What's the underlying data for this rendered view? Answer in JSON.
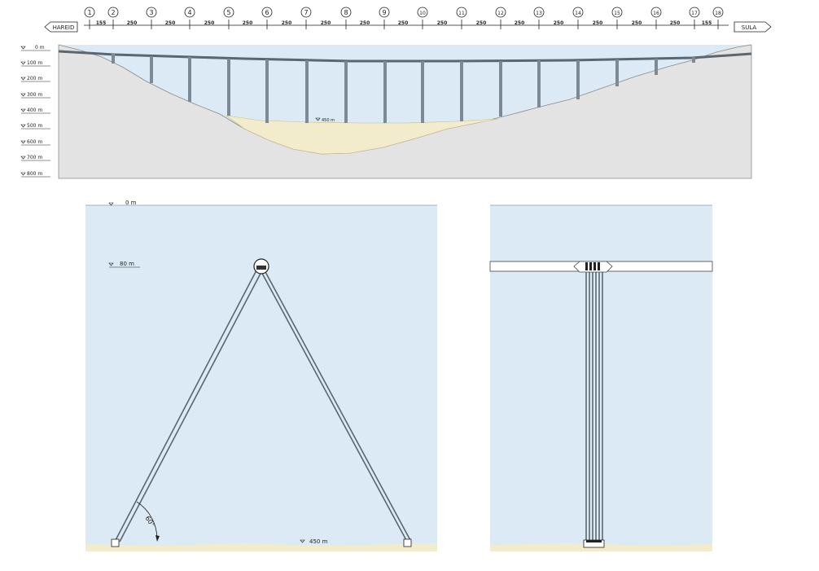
{
  "top_section": {
    "axis_numbers": [
      "1",
      "2",
      "3",
      "4",
      "5",
      "6",
      "7",
      "8",
      "9",
      "10",
      "11",
      "12",
      "13",
      "14",
      "15",
      "16",
      "17",
      "18"
    ],
    "span_labels": [
      "155",
      "250",
      "250",
      "250",
      "250",
      "250",
      "250",
      "250",
      "250",
      "250",
      "250",
      "250",
      "250",
      "250",
      "250",
      "250",
      "155"
    ],
    "west_end_label": "HAREID",
    "east_end_label": "SULA",
    "depth_labels": [
      "0 m",
      "100 m",
      "200 m",
      "300 m",
      "400 m",
      "500 m",
      "600 m",
      "700 m",
      "800 m"
    ],
    "seabed_depth_label": "450 m"
  },
  "cross_section": {
    "surface_label": "0 m",
    "tunnel_depth_label": "80 m",
    "seabed_label": "450 m",
    "angle_label": "60°"
  },
  "colors": {
    "water": "#dbeaf4",
    "ground": "#e3e3e3",
    "sediment": "#f2eccc",
    "structure": "#5a6670"
  }
}
